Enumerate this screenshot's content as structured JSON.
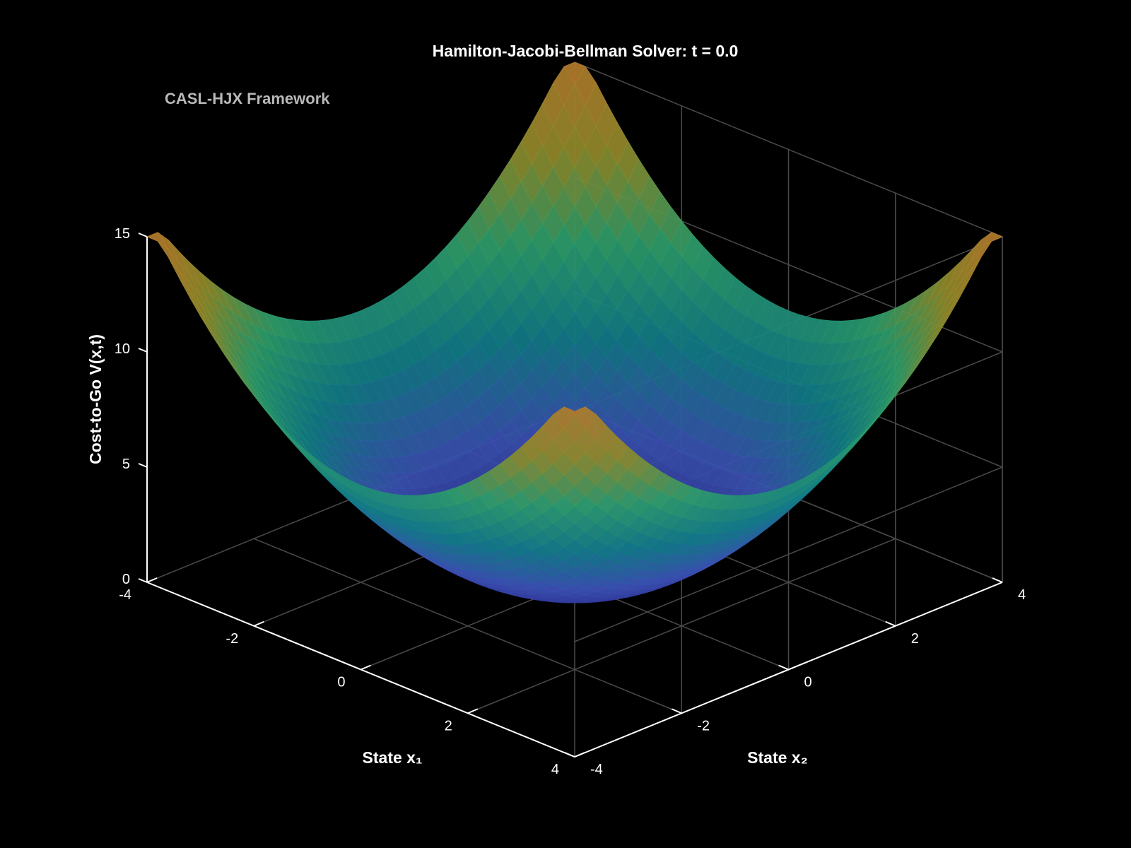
{
  "chart_data": {
    "type": "surface",
    "title": "Hamilton-Jacobi-Bellman Solver: t = 0.0",
    "annotation": "CASL-HJX Framework",
    "xlabel": "State x₁",
    "ylabel": "State x₂",
    "zlabel": "Cost-to-Go V(x,t)",
    "xlim": [
      -4,
      4
    ],
    "ylim": [
      -4,
      4
    ],
    "zlim": [
      0,
      15
    ],
    "x_ticks": [
      "-4",
      "-2",
      "0",
      "2",
      "4"
    ],
    "y_ticks": [
      "-4",
      "-2",
      "0",
      "2",
      "4"
    ],
    "z_ticks": [
      "0",
      "5",
      "10",
      "15"
    ],
    "function": "V(x1,x2) = 0.5*(x1^2 + x2^2), clipped at 15",
    "grid": true,
    "colormap": [
      "#2a2a8c",
      "#3a50b0",
      "#117a86",
      "#2c9c6a",
      "#8e8a2a",
      "#b07a2c"
    ],
    "background": "#000000"
  }
}
